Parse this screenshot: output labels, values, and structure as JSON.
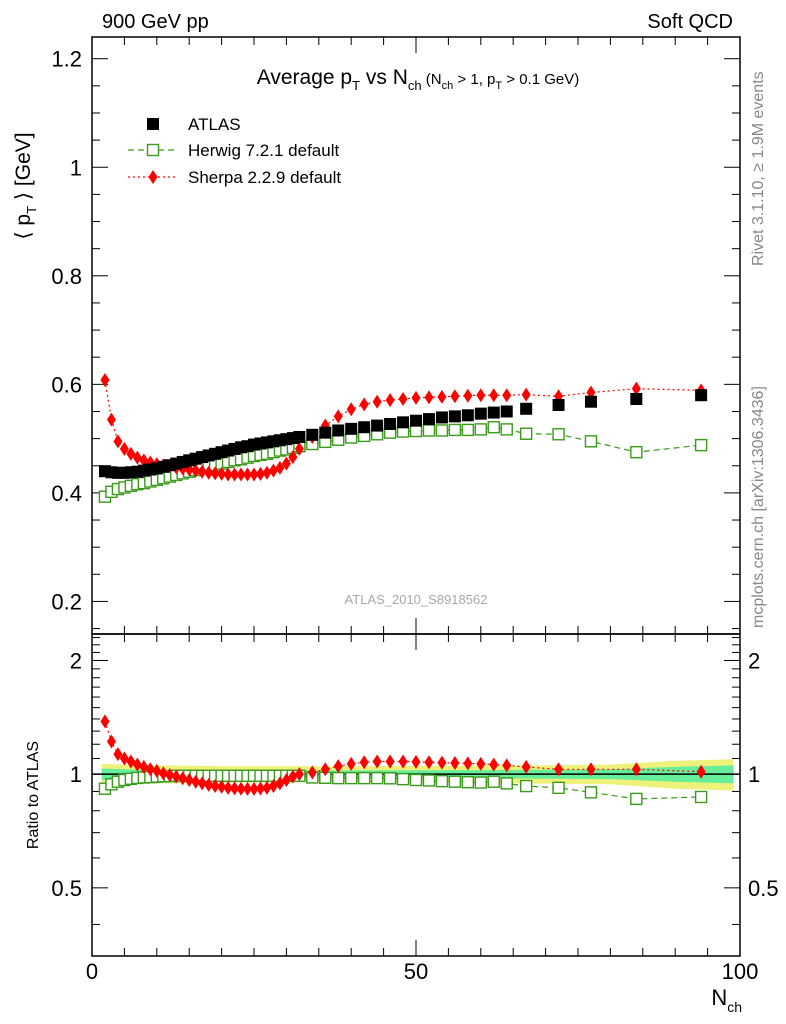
{
  "header": {
    "left": "900 GeV pp",
    "right": "Soft QCD"
  },
  "side_notes": {
    "rivet": "Rivet 3.1.10, ≥ 1.9M events",
    "mcplots": "mcplots.cern.ch [arXiv:1306.3436]"
  },
  "watermark": "ATLAS_2010_S8918562",
  "colors": {
    "atlas": "#000000",
    "herwig": "#3a9a1a",
    "sherpa": "#ff0000",
    "band_inner": "#66ee99",
    "band_outer": "#eef27a"
  },
  "chart_data": [
    {
      "type": "scatter",
      "panel": "main",
      "title": "Average pT vs Nch (Nch > 1, pT > 0.1 GeV)",
      "xlabel": "",
      "ylabel": "⟨ pT ⟩ [GeV]",
      "xlim": [
        0,
        100
      ],
      "ylim": [
        0.14,
        1.24
      ],
      "yticks": [
        0.2,
        0.4,
        0.6,
        0.8,
        1.0,
        1.2
      ],
      "yticklabels": [
        "0.2",
        "0.4",
        "0.6",
        "0.8",
        "1",
        "1.2"
      ],
      "grid": false,
      "legend_position": "top-left",
      "series": [
        {
          "name": "ATLAS",
          "style": "square-filled",
          "x": [
            2,
            3,
            4,
            5,
            6,
            7,
            8,
            9,
            10,
            11,
            12,
            13,
            14,
            15,
            16,
            17,
            18,
            19,
            20,
            21,
            22,
            23,
            24,
            25,
            26,
            27,
            28,
            29,
            30,
            31,
            32,
            34,
            36,
            38,
            40,
            42,
            44,
            46,
            48,
            50,
            52,
            54,
            56,
            58,
            60,
            62,
            64,
            67,
            72,
            77,
            84,
            94
          ],
          "y": [
            0.44,
            0.438,
            0.437,
            0.437,
            0.438,
            0.439,
            0.441,
            0.443,
            0.445,
            0.448,
            0.451,
            0.454,
            0.457,
            0.46,
            0.463,
            0.466,
            0.469,
            0.472,
            0.475,
            0.478,
            0.481,
            0.484,
            0.486,
            0.489,
            0.491,
            0.493,
            0.495,
            0.497,
            0.499,
            0.501,
            0.503,
            0.507,
            0.511,
            0.515,
            0.518,
            0.521,
            0.524,
            0.527,
            0.53,
            0.533,
            0.536,
            0.539,
            0.541,
            0.543,
            0.546,
            0.548,
            0.55,
            0.555,
            0.562,
            0.568,
            0.573,
            0.58
          ]
        },
        {
          "name": "Herwig 7.2.1 default",
          "style": "square-open-dashed",
          "x": [
            2,
            3,
            4,
            5,
            6,
            7,
            8,
            9,
            10,
            11,
            12,
            13,
            14,
            15,
            16,
            17,
            18,
            19,
            20,
            21,
            22,
            23,
            24,
            25,
            26,
            27,
            28,
            29,
            30,
            31,
            32,
            34,
            36,
            38,
            40,
            42,
            44,
            46,
            48,
            50,
            52,
            54,
            56,
            58,
            60,
            62,
            64,
            67,
            72,
            77,
            84,
            94
          ],
          "y": [
            0.393,
            0.402,
            0.407,
            0.41,
            0.413,
            0.416,
            0.418,
            0.421,
            0.424,
            0.427,
            0.43,
            0.433,
            0.436,
            0.439,
            0.442,
            0.445,
            0.448,
            0.451,
            0.454,
            0.457,
            0.46,
            0.462,
            0.465,
            0.468,
            0.47,
            0.472,
            0.475,
            0.478,
            0.48,
            0.483,
            0.486,
            0.49,
            0.494,
            0.498,
            0.502,
            0.505,
            0.508,
            0.511,
            0.513,
            0.514,
            0.515,
            0.515,
            0.516,
            0.516,
            0.517,
            0.521,
            0.517,
            0.509,
            0.508,
            0.495,
            0.475,
            0.488
          ]
        },
        {
          "name": "Sherpa 2.2.9 default",
          "style": "diamond-filled-dotted",
          "x": [
            2,
            3,
            4,
            5,
            6,
            7,
            8,
            9,
            10,
            11,
            12,
            13,
            14,
            15,
            16,
            17,
            18,
            19,
            20,
            21,
            22,
            23,
            24,
            25,
            26,
            27,
            28,
            29,
            30,
            31,
            32,
            34,
            36,
            38,
            40,
            42,
            44,
            46,
            48,
            50,
            52,
            54,
            56,
            58,
            60,
            62,
            64,
            67,
            72,
            77,
            84,
            94
          ],
          "y": [
            0.608,
            0.535,
            0.495,
            0.481,
            0.472,
            0.465,
            0.46,
            0.456,
            0.453,
            0.451,
            0.449,
            0.447,
            0.445,
            0.443,
            0.441,
            0.439,
            0.437,
            0.436,
            0.435,
            0.434,
            0.434,
            0.434,
            0.434,
            0.434,
            0.435,
            0.437,
            0.441,
            0.446,
            0.454,
            0.466,
            0.481,
            0.503,
            0.524,
            0.541,
            0.554,
            0.563,
            0.568,
            0.571,
            0.573,
            0.575,
            0.576,
            0.577,
            0.578,
            0.579,
            0.58,
            0.58,
            0.58,
            0.581,
            0.578,
            0.585,
            0.592,
            0.589
          ]
        }
      ]
    },
    {
      "type": "scatter",
      "panel": "ratio",
      "title": "",
      "xlabel": "Nch",
      "ylabel": "Ratio to ATLAS",
      "xlim": [
        0,
        100
      ],
      "ylim": [
        0.33,
        2.35
      ],
      "ylog": true,
      "xticks": [
        0,
        50,
        100
      ],
      "xticklabels": [
        "0",
        "50",
        "100"
      ],
      "yticks": [
        0.5,
        1,
        2
      ],
      "yticklabels": [
        "0.5",
        "1",
        "2"
      ],
      "grid": false,
      "reference_line": 1,
      "band_inner": {
        "x": [
          1.5,
          5,
          10,
          20,
          40,
          60,
          80,
          90,
          99
        ],
        "lo": [
          0.965,
          0.97,
          0.975,
          0.977,
          0.977,
          0.975,
          0.97,
          0.955,
          0.945
        ],
        "hi": [
          1.035,
          1.03,
          1.025,
          1.023,
          1.023,
          1.025,
          1.03,
          1.045,
          1.055
        ]
      },
      "band_outer": {
        "x": [
          1.5,
          5,
          10,
          20,
          40,
          60,
          80,
          90,
          99
        ],
        "lo": [
          0.935,
          0.94,
          0.945,
          0.95,
          0.95,
          0.947,
          0.94,
          0.915,
          0.905
        ],
        "hi": [
          1.065,
          1.06,
          1.055,
          1.05,
          1.05,
          1.053,
          1.06,
          1.085,
          1.095
        ]
      },
      "series": [
        {
          "name": "Herwig 7.2.1 default",
          "style": "square-open-dashed",
          "x": [
            2,
            3,
            4,
            5,
            6,
            7,
            8,
            9,
            10,
            11,
            12,
            13,
            14,
            15,
            16,
            17,
            18,
            19,
            20,
            21,
            22,
            23,
            24,
            25,
            26,
            27,
            28,
            29,
            30,
            31,
            32,
            34,
            36,
            38,
            40,
            42,
            44,
            46,
            48,
            50,
            52,
            54,
            56,
            58,
            60,
            62,
            64,
            67,
            72,
            77,
            84,
            94
          ],
          "y": [
            0.915,
            0.94,
            0.955,
            0.965,
            0.972,
            0.977,
            0.98,
            0.982,
            0.985,
            0.987,
            0.988,
            0.99,
            0.99,
            0.99,
            0.99,
            0.99,
            0.99,
            0.99,
            0.99,
            0.99,
            0.99,
            0.99,
            0.99,
            0.99,
            0.99,
            0.99,
            0.99,
            0.99,
            0.99,
            0.99,
            0.99,
            0.98,
            0.978,
            0.976,
            0.976,
            0.976,
            0.976,
            0.975,
            0.97,
            0.965,
            0.962,
            0.958,
            0.955,
            0.952,
            0.95,
            0.955,
            0.945,
            0.93,
            0.92,
            0.895,
            0.86,
            0.87
          ]
        },
        {
          "name": "Sherpa 2.2.9 default",
          "style": "diamond-filled-dotted",
          "x": [
            2,
            3,
            4,
            5,
            6,
            7,
            8,
            9,
            10,
            11,
            12,
            13,
            14,
            15,
            16,
            17,
            18,
            19,
            20,
            21,
            22,
            23,
            24,
            25,
            26,
            27,
            28,
            29,
            30,
            31,
            32,
            34,
            36,
            38,
            40,
            42,
            44,
            46,
            48,
            50,
            52,
            54,
            56,
            58,
            60,
            62,
            64,
            67,
            72,
            77,
            84,
            94
          ],
          "y": [
            1.38,
            1.22,
            1.13,
            1.1,
            1.08,
            1.06,
            1.045,
            1.03,
            1.02,
            1.005,
            0.995,
            0.985,
            0.975,
            0.965,
            0.955,
            0.945,
            0.937,
            0.93,
            0.925,
            0.92,
            0.917,
            0.915,
            0.914,
            0.914,
            0.916,
            0.92,
            0.93,
            0.945,
            0.965,
            0.985,
            1.0,
            1.01,
            1.03,
            1.05,
            1.065,
            1.075,
            1.08,
            1.08,
            1.08,
            1.078,
            1.075,
            1.073,
            1.07,
            1.068,
            1.065,
            1.06,
            1.055,
            1.045,
            1.03,
            1.03,
            1.03,
            1.015
          ]
        }
      ]
    }
  ]
}
